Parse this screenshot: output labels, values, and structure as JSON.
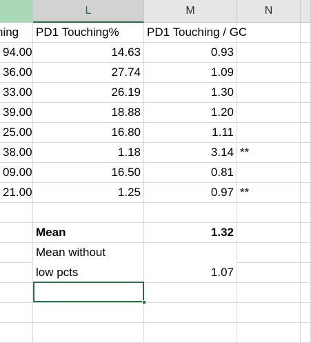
{
  "columns": {
    "L": "L",
    "M": "M",
    "N": "N"
  },
  "header_row": {
    "k": "hing",
    "l": "PD1 Touching%",
    "m": "PD1 Touching / GC"
  },
  "rows": [
    {
      "k": "94.00",
      "l": "14.63",
      "m": "0.93",
      "n": ""
    },
    {
      "k": "36.00",
      "l": "27.74",
      "m": "1.09",
      "n": ""
    },
    {
      "k": "33.00",
      "l": "26.19",
      "m": "1.30",
      "n": ""
    },
    {
      "k": "39.00",
      "l": "18.88",
      "m": "1.20",
      "n": ""
    },
    {
      "k": "25.00",
      "l": "16.80",
      "m": "1.11",
      "n": ""
    },
    {
      "k": "38.00",
      "l": "1.18",
      "m": "3.14",
      "n": "**"
    },
    {
      "k": "09.00",
      "l": "16.50",
      "m": "0.81",
      "n": ""
    },
    {
      "k": "21.00",
      "l": "1.25",
      "m": "0.97",
      "n": "**"
    }
  ],
  "summary": {
    "mean_label": "Mean",
    "mean_value": "1.32",
    "mean_without_line1": "Mean without",
    "mean_without_line2": "low pcts",
    "mean_without_value": "1.07"
  },
  "colors": {
    "selection": "#217346",
    "header_bg": "#e6e6e6",
    "gridline": "#d9d9d9"
  }
}
